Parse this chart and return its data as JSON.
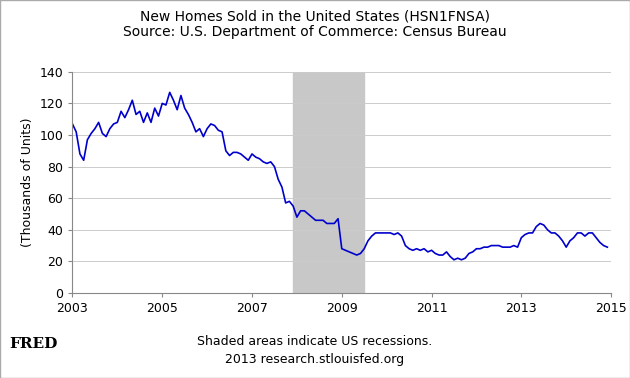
{
  "title_line1": "New Homes Sold in the United States (HSN1FNSA)",
  "title_line2": "Source: U.S. Department of Commerce: Census Bureau",
  "ylabel": "(Thousands of Units)",
  "xlabel_note": "Shaded areas indicate US recessions.",
  "footer_note": "2013 research.stlouisfed.org",
  "fred_label": "FRED",
  "xlim": [
    2003.0,
    2015.0
  ],
  "ylim": [
    0,
    140
  ],
  "yticks": [
    0,
    20,
    40,
    60,
    80,
    100,
    120,
    140
  ],
  "xticks": [
    2003,
    2005,
    2007,
    2009,
    2011,
    2013,
    2015
  ],
  "recession_start": 2007.917,
  "recession_end": 2009.5,
  "line_color": "#0000CC",
  "recession_color": "#C8C8C8",
  "background_color": "#ffffff",
  "title_fontsize": 10,
  "axis_fontsize": 9,
  "tick_fontsize": 9,
  "data": {
    "dates": [
      2003.0,
      2003.083,
      2003.167,
      2003.25,
      2003.333,
      2003.417,
      2003.5,
      2003.583,
      2003.667,
      2003.75,
      2003.833,
      2003.917,
      2004.0,
      2004.083,
      2004.167,
      2004.25,
      2004.333,
      2004.417,
      2004.5,
      2004.583,
      2004.667,
      2004.75,
      2004.833,
      2004.917,
      2005.0,
      2005.083,
      2005.167,
      2005.25,
      2005.333,
      2005.417,
      2005.5,
      2005.583,
      2005.667,
      2005.75,
      2005.833,
      2005.917,
      2006.0,
      2006.083,
      2006.167,
      2006.25,
      2006.333,
      2006.417,
      2006.5,
      2006.583,
      2006.667,
      2006.75,
      2006.833,
      2006.917,
      2007.0,
      2007.083,
      2007.167,
      2007.25,
      2007.333,
      2007.417,
      2007.5,
      2007.583,
      2007.667,
      2007.75,
      2007.833,
      2007.917,
      2008.0,
      2008.083,
      2008.167,
      2008.25,
      2008.333,
      2008.417,
      2008.5,
      2008.583,
      2008.667,
      2008.75,
      2008.833,
      2008.917,
      2009.0,
      2009.083,
      2009.167,
      2009.25,
      2009.333,
      2009.417,
      2009.5,
      2009.583,
      2009.667,
      2009.75,
      2009.833,
      2009.917,
      2010.0,
      2010.083,
      2010.167,
      2010.25,
      2010.333,
      2010.417,
      2010.5,
      2010.583,
      2010.667,
      2010.75,
      2010.833,
      2010.917,
      2011.0,
      2011.083,
      2011.167,
      2011.25,
      2011.333,
      2011.417,
      2011.5,
      2011.583,
      2011.667,
      2011.75,
      2011.833,
      2011.917,
      2012.0,
      2012.083,
      2012.167,
      2012.25,
      2012.333,
      2012.417,
      2012.5,
      2012.583,
      2012.667,
      2012.75,
      2012.833,
      2012.917,
      2013.0,
      2013.083,
      2013.167,
      2013.25,
      2013.333,
      2013.417,
      2013.5,
      2013.583,
      2013.667,
      2013.75,
      2013.833,
      2013.917,
      2014.0,
      2014.083,
      2014.167,
      2014.25,
      2014.333,
      2014.417,
      2014.5,
      2014.583,
      2014.667,
      2014.75,
      2014.833,
      2014.917
    ],
    "values": [
      107,
      102,
      88,
      84,
      97,
      101,
      104,
      108,
      101,
      99,
      104,
      107,
      108,
      115,
      111,
      116,
      122,
      113,
      115,
      108,
      114,
      108,
      117,
      112,
      120,
      119,
      127,
      122,
      116,
      125,
      117,
      113,
      108,
      102,
      104,
      99,
      104,
      107,
      106,
      103,
      102,
      90,
      87,
      89,
      89,
      88,
      86,
      84,
      88,
      86,
      85,
      83,
      82,
      83,
      80,
      72,
      67,
      57,
      58,
      55,
      48,
      52,
      52,
      50,
      48,
      46,
      46,
      46,
      44,
      44,
      44,
      47,
      28,
      27,
      26,
      25,
      24,
      25,
      28,
      33,
      36,
      38,
      38,
      38,
      38,
      38,
      37,
      38,
      36,
      30,
      28,
      27,
      28,
      27,
      28,
      26,
      27,
      25,
      24,
      24,
      26,
      23,
      21,
      22,
      21,
      22,
      25,
      26,
      28,
      28,
      29,
      29,
      30,
      30,
      30,
      29,
      29,
      29,
      30,
      29,
      35,
      37,
      38,
      38,
      42,
      44,
      43,
      40,
      38,
      38,
      36,
      33,
      29,
      33,
      35,
      38,
      38,
      36,
      38,
      38,
      35,
      32,
      30,
      29
    ]
  }
}
